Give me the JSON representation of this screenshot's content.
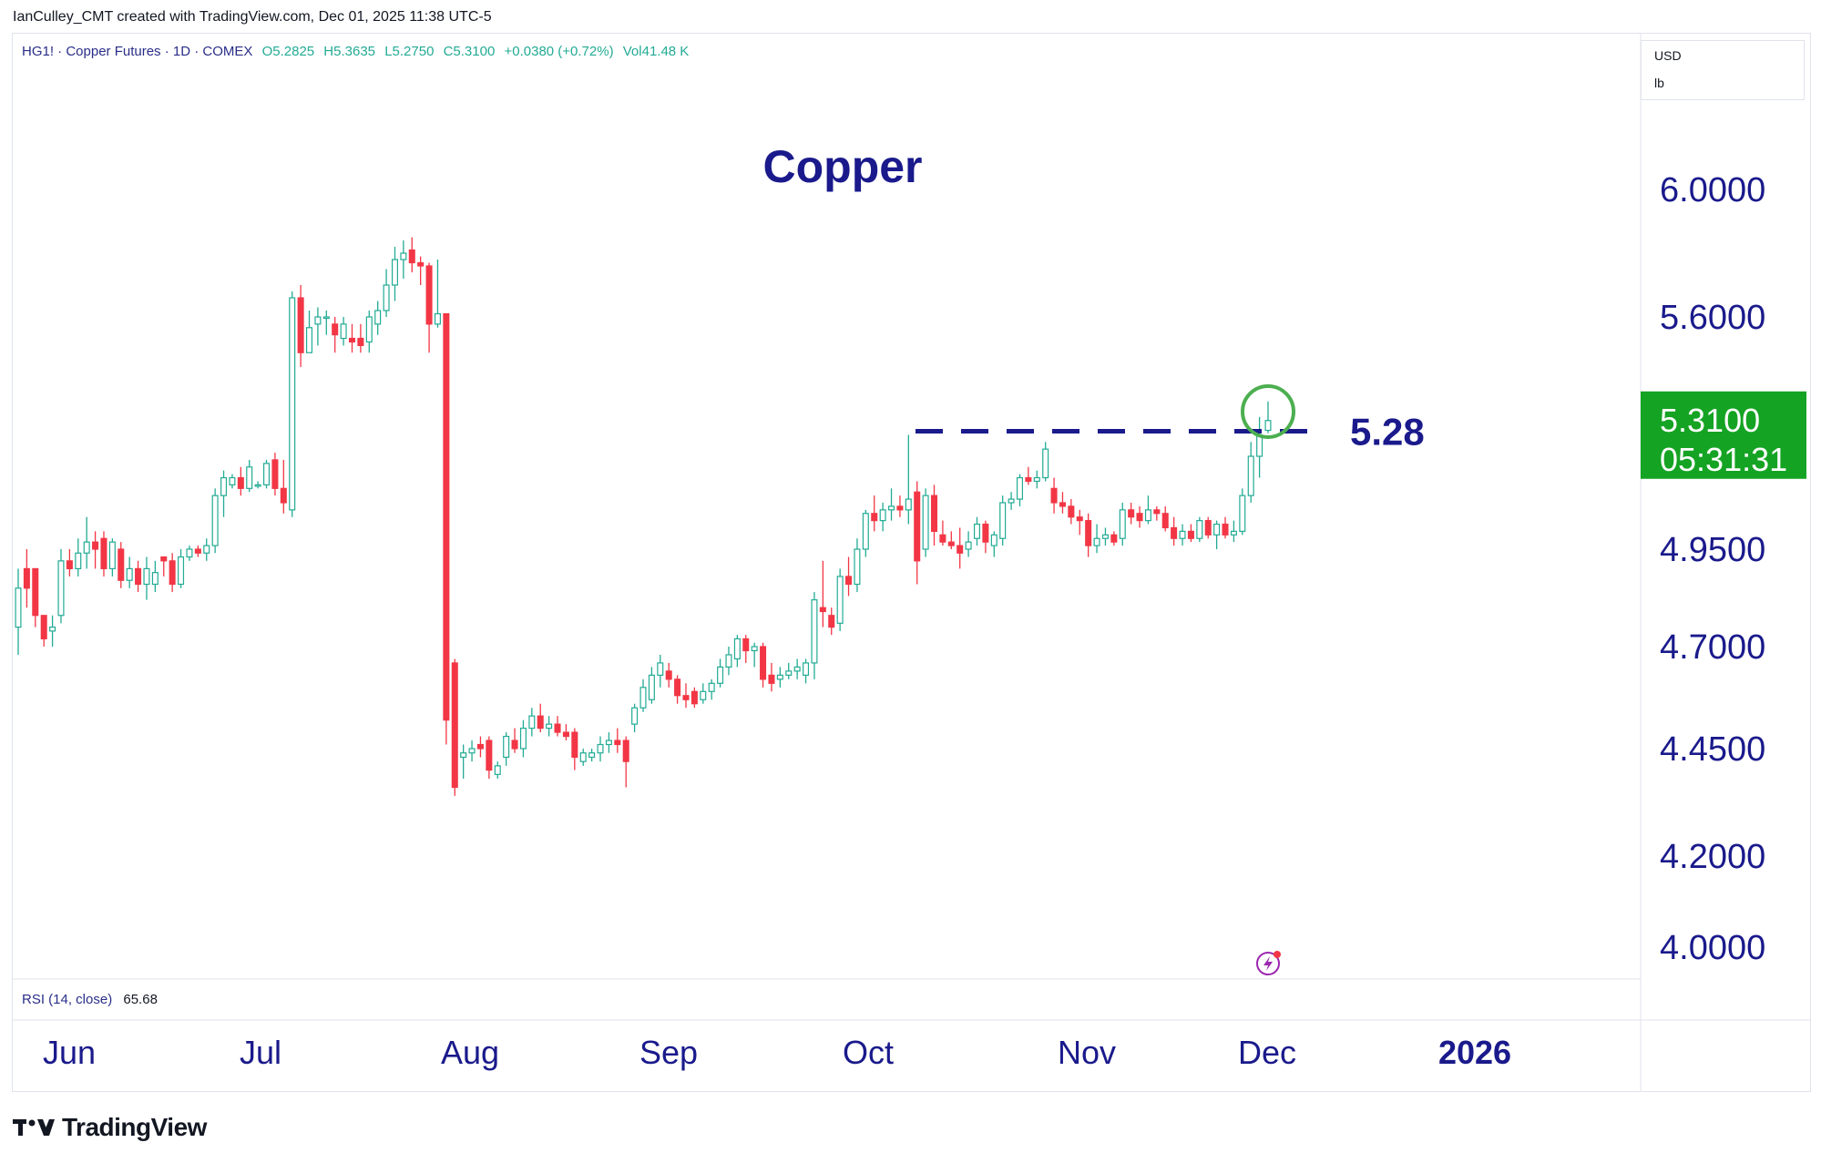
{
  "header": {
    "attribution": "IanCulley_CMT created with TradingView.com, Dec 01, 2025 11:38 UTC-5"
  },
  "legend": {
    "symbol": "HG1! · Copper Futures · 1D · COMEX",
    "open": "O5.2825",
    "high": "H5.3635",
    "low": "L5.2750",
    "close": "C5.3100",
    "change": "+0.0380 (+0.72%)",
    "volume": "Vol41.48 K"
  },
  "units": {
    "currency": "USD",
    "unit": "lb"
  },
  "indicator": {
    "label": "RSI (14, close)",
    "value": "65.68"
  },
  "price_tag": {
    "price": "5.3100",
    "countdown": "05:31:31"
  },
  "annotation": {
    "resistance_label": "5.28"
  },
  "brand": {
    "name": "TradingView"
  },
  "colors": {
    "up": "#22ab94",
    "up_body": "#4caf50",
    "down": "#f23645",
    "accent": "#1a1a8c",
    "tag": "#15a323"
  },
  "chart_data": {
    "type": "candlestick",
    "title": "Copper",
    "y_ticks": [
      6.0,
      5.6,
      4.95,
      4.7,
      4.45,
      4.2,
      4.0
    ],
    "y_tick_labels": [
      "6.0000",
      "5.6000",
      "4.9500",
      "4.7000",
      "4.4500",
      "4.2000",
      "4.0000"
    ],
    "x_ticks": [
      {
        "label": "Jun",
        "date": "2025-06-01"
      },
      {
        "label": "Jul",
        "date": "2025-07-01"
      },
      {
        "label": "Aug",
        "date": "2025-08-01"
      },
      {
        "label": "Sep",
        "date": "2025-09-01"
      },
      {
        "label": "Oct",
        "date": "2025-10-01"
      },
      {
        "label": "Nov",
        "date": "2025-11-01"
      },
      {
        "label": "Dec",
        "date": "2025-12-01"
      },
      {
        "label": "2026",
        "date": "2026-01-01"
      }
    ],
    "resistance": 5.28,
    "last_price": 5.31,
    "highlight_date": "2025-12-01",
    "candles": [
      {
        "d": "2025-05-27",
        "o": 4.75,
        "h": 4.9,
        "l": 4.68,
        "c": 4.85
      },
      {
        "d": "2025-05-28",
        "o": 4.9,
        "h": 4.95,
        "l": 4.8,
        "c": 4.85
      },
      {
        "d": "2025-05-29",
        "o": 4.9,
        "h": 4.9,
        "l": 4.75,
        "c": 4.78
      },
      {
        "d": "2025-05-30",
        "o": 4.78,
        "h": 4.78,
        "l": 4.7,
        "c": 4.72
      },
      {
        "d": "2025-06-02",
        "o": 4.74,
        "h": 4.78,
        "l": 4.7,
        "c": 4.75
      },
      {
        "d": "2025-06-03",
        "o": 4.78,
        "h": 4.95,
        "l": 4.76,
        "c": 4.92
      },
      {
        "d": "2025-06-04",
        "o": 4.92,
        "h": 4.95,
        "l": 4.88,
        "c": 4.9
      },
      {
        "d": "2025-06-05",
        "o": 4.9,
        "h": 4.98,
        "l": 4.88,
        "c": 4.94
      },
      {
        "d": "2025-06-06",
        "o": 4.94,
        "h": 5.04,
        "l": 4.9,
        "c": 4.97
      },
      {
        "d": "2025-06-09",
        "o": 4.97,
        "h": 5.0,
        "l": 4.9,
        "c": 4.95
      },
      {
        "d": "2025-06-10",
        "o": 4.98,
        "h": 5.0,
        "l": 4.88,
        "c": 4.9
      },
      {
        "d": "2025-06-11",
        "o": 4.9,
        "h": 4.98,
        "l": 4.88,
        "c": 4.97
      },
      {
        "d": "2025-06-12",
        "o": 4.95,
        "h": 4.97,
        "l": 4.85,
        "c": 4.87
      },
      {
        "d": "2025-06-13",
        "o": 4.87,
        "h": 4.93,
        "l": 4.85,
        "c": 4.9
      },
      {
        "d": "2025-06-16",
        "o": 4.9,
        "h": 4.92,
        "l": 4.84,
        "c": 4.86
      },
      {
        "d": "2025-06-17",
        "o": 4.86,
        "h": 4.93,
        "l": 4.82,
        "c": 4.9
      },
      {
        "d": "2025-06-18",
        "o": 4.86,
        "h": 4.92,
        "l": 4.84,
        "c": 4.89
      },
      {
        "d": "2025-06-19",
        "o": 4.93,
        "h": 4.93,
        "l": 4.88,
        "c": 4.92
      },
      {
        "d": "2025-06-20",
        "o": 4.92,
        "h": 4.94,
        "l": 4.84,
        "c": 4.86
      },
      {
        "d": "2025-06-23",
        "o": 4.86,
        "h": 4.95,
        "l": 4.85,
        "c": 4.93
      },
      {
        "d": "2025-06-24",
        "o": 4.93,
        "h": 4.96,
        "l": 4.92,
        "c": 4.95
      },
      {
        "d": "2025-06-25",
        "o": 4.95,
        "h": 4.96,
        "l": 4.93,
        "c": 4.94
      },
      {
        "d": "2025-06-26",
        "o": 4.94,
        "h": 4.98,
        "l": 4.92,
        "c": 4.96
      },
      {
        "d": "2025-06-27",
        "o": 4.96,
        "h": 5.12,
        "l": 4.94,
        "c": 5.1
      },
      {
        "d": "2025-06-30",
        "o": 5.1,
        "h": 5.17,
        "l": 5.04,
        "c": 5.15
      },
      {
        "d": "2025-07-01",
        "o": 5.13,
        "h": 5.16,
        "l": 5.12,
        "c": 5.15
      },
      {
        "d": "2025-07-02",
        "o": 5.15,
        "h": 5.18,
        "l": 5.1,
        "c": 5.12
      },
      {
        "d": "2025-07-03",
        "o": 5.12,
        "h": 5.2,
        "l": 5.11,
        "c": 5.18
      },
      {
        "d": "2025-07-04",
        "o": 5.13,
        "h": 5.14,
        "l": 5.12,
        "c": 5.13
      },
      {
        "d": "2025-07-07",
        "o": 5.13,
        "h": 5.2,
        "l": 5.12,
        "c": 5.19
      },
      {
        "d": "2025-07-08",
        "o": 5.2,
        "h": 5.22,
        "l": 5.1,
        "c": 5.12
      },
      {
        "d": "2025-07-09",
        "o": 5.12,
        "h": 5.2,
        "l": 5.05,
        "c": 5.08
      },
      {
        "d": "2025-07-10",
        "o": 5.06,
        "h": 5.68,
        "l": 5.04,
        "c": 5.66
      },
      {
        "d": "2025-07-11",
        "o": 5.66,
        "h": 5.7,
        "l": 5.46,
        "c": 5.5
      },
      {
        "d": "2025-07-14",
        "o": 5.5,
        "h": 5.62,
        "l": 5.5,
        "c": 5.57
      },
      {
        "d": "2025-07-15",
        "o": 5.58,
        "h": 5.63,
        "l": 5.52,
        "c": 5.6
      },
      {
        "d": "2025-07-16",
        "o": 5.6,
        "h": 5.62,
        "l": 5.55,
        "c": 5.6
      },
      {
        "d": "2025-07-17",
        "o": 5.58,
        "h": 5.6,
        "l": 5.5,
        "c": 5.55
      },
      {
        "d": "2025-07-18",
        "o": 5.54,
        "h": 5.6,
        "l": 5.52,
        "c": 5.58
      },
      {
        "d": "2025-07-21",
        "o": 5.54,
        "h": 5.58,
        "l": 5.5,
        "c": 5.53
      },
      {
        "d": "2025-07-22",
        "o": 5.54,
        "h": 5.58,
        "l": 5.5,
        "c": 5.52
      },
      {
        "d": "2025-07-23",
        "o": 5.53,
        "h": 5.62,
        "l": 5.5,
        "c": 5.6
      },
      {
        "d": "2025-07-24",
        "o": 5.58,
        "h": 5.65,
        "l": 5.55,
        "c": 5.62
      },
      {
        "d": "2025-07-25",
        "o": 5.62,
        "h": 5.75,
        "l": 5.6,
        "c": 5.7
      },
      {
        "d": "2025-07-28",
        "o": 5.7,
        "h": 5.82,
        "l": 5.65,
        "c": 5.78
      },
      {
        "d": "2025-07-29",
        "o": 5.78,
        "h": 5.84,
        "l": 5.72,
        "c": 5.8
      },
      {
        "d": "2025-07-30",
        "o": 5.81,
        "h": 5.85,
        "l": 5.74,
        "c": 5.77
      },
      {
        "d": "2025-07-31",
        "o": 5.77,
        "h": 5.79,
        "l": 5.7,
        "c": 5.76
      },
      {
        "d": "2025-08-01",
        "o": 5.76,
        "h": 5.77,
        "l": 5.5,
        "c": 5.58
      },
      {
        "d": "2025-08-04",
        "o": 5.58,
        "h": 5.78,
        "l": 5.57,
        "c": 5.61
      },
      {
        "d": "2025-08-05",
        "o": 5.61,
        "h": 5.61,
        "l": 4.46,
        "c": 4.52
      },
      {
        "d": "2025-08-06",
        "o": 4.66,
        "h": 4.67,
        "l": 4.34,
        "c": 4.36
      },
      {
        "d": "2025-08-07",
        "o": 4.43,
        "h": 4.46,
        "l": 4.38,
        "c": 4.44
      },
      {
        "d": "2025-08-08",
        "o": 4.44,
        "h": 4.47,
        "l": 4.42,
        "c": 4.45
      },
      {
        "d": "2025-08-11",
        "o": 4.46,
        "h": 4.48,
        "l": 4.43,
        "c": 4.45
      },
      {
        "d": "2025-08-12",
        "o": 4.47,
        "h": 4.48,
        "l": 4.38,
        "c": 4.4
      },
      {
        "d": "2025-08-13",
        "o": 4.39,
        "h": 4.42,
        "l": 4.38,
        "c": 4.41
      },
      {
        "d": "2025-08-14",
        "o": 4.43,
        "h": 4.49,
        "l": 4.41,
        "c": 4.48
      },
      {
        "d": "2025-08-15",
        "o": 4.47,
        "h": 4.5,
        "l": 4.44,
        "c": 4.45
      },
      {
        "d": "2025-08-18",
        "o": 4.45,
        "h": 4.52,
        "l": 4.43,
        "c": 4.5
      },
      {
        "d": "2025-08-19",
        "o": 4.5,
        "h": 4.55,
        "l": 4.48,
        "c": 4.53
      },
      {
        "d": "2025-08-20",
        "o": 4.53,
        "h": 4.56,
        "l": 4.49,
        "c": 4.5
      },
      {
        "d": "2025-08-21",
        "o": 4.5,
        "h": 4.53,
        "l": 4.48,
        "c": 4.51
      },
      {
        "d": "2025-08-22",
        "o": 4.51,
        "h": 4.53,
        "l": 4.48,
        "c": 4.49
      },
      {
        "d": "2025-08-25",
        "o": 4.49,
        "h": 4.51,
        "l": 4.47,
        "c": 4.48
      },
      {
        "d": "2025-08-26",
        "o": 4.49,
        "h": 4.5,
        "l": 4.4,
        "c": 4.43
      },
      {
        "d": "2025-08-27",
        "o": 4.42,
        "h": 4.45,
        "l": 4.41,
        "c": 4.44
      },
      {
        "d": "2025-08-28",
        "o": 4.43,
        "h": 4.45,
        "l": 4.42,
        "c": 4.44
      },
      {
        "d": "2025-08-29",
        "o": 4.44,
        "h": 4.48,
        "l": 4.42,
        "c": 4.46
      },
      {
        "d": "2025-09-01",
        "o": 4.46,
        "h": 4.49,
        "l": 4.44,
        "c": 4.47
      },
      {
        "d": "2025-09-02",
        "o": 4.47,
        "h": 4.5,
        "l": 4.44,
        "c": 4.46
      },
      {
        "d": "2025-09-03",
        "o": 4.47,
        "h": 4.48,
        "l": 4.36,
        "c": 4.42
      },
      {
        "d": "2025-09-04",
        "o": 4.51,
        "h": 4.56,
        "l": 4.49,
        "c": 4.55
      },
      {
        "d": "2025-09-05",
        "o": 4.55,
        "h": 4.62,
        "l": 4.54,
        "c": 4.6
      },
      {
        "d": "2025-09-08",
        "o": 4.57,
        "h": 4.65,
        "l": 4.56,
        "c": 4.63
      },
      {
        "d": "2025-09-09",
        "o": 4.63,
        "h": 4.68,
        "l": 4.6,
        "c": 4.66
      },
      {
        "d": "2025-09-10",
        "o": 4.64,
        "h": 4.66,
        "l": 4.6,
        "c": 4.62
      },
      {
        "d": "2025-09-11",
        "o": 4.62,
        "h": 4.63,
        "l": 4.56,
        "c": 4.58
      },
      {
        "d": "2025-09-12",
        "o": 4.58,
        "h": 4.61,
        "l": 4.55,
        "c": 4.57
      },
      {
        "d": "2025-09-15",
        "o": 4.59,
        "h": 4.6,
        "l": 4.55,
        "c": 4.56
      },
      {
        "d": "2025-09-16",
        "o": 4.57,
        "h": 4.61,
        "l": 4.56,
        "c": 4.59
      },
      {
        "d": "2025-09-17",
        "o": 4.59,
        "h": 4.62,
        "l": 4.57,
        "c": 4.61
      },
      {
        "d": "2025-09-18",
        "o": 4.61,
        "h": 4.67,
        "l": 4.6,
        "c": 4.65
      },
      {
        "d": "2025-09-19",
        "o": 4.65,
        "h": 4.7,
        "l": 4.63,
        "c": 4.68
      },
      {
        "d": "2025-09-22",
        "o": 4.67,
        "h": 4.73,
        "l": 4.65,
        "c": 4.72
      },
      {
        "d": "2025-09-23",
        "o": 4.72,
        "h": 4.73,
        "l": 4.66,
        "c": 4.69
      },
      {
        "d": "2025-09-24",
        "o": 4.69,
        "h": 4.71,
        "l": 4.65,
        "c": 4.7
      },
      {
        "d": "2025-09-25",
        "o": 4.7,
        "h": 4.71,
        "l": 4.6,
        "c": 4.62
      },
      {
        "d": "2025-09-26",
        "o": 4.63,
        "h": 4.66,
        "l": 4.59,
        "c": 4.61
      },
      {
        "d": "2025-09-29",
        "o": 4.62,
        "h": 4.65,
        "l": 4.6,
        "c": 4.63
      },
      {
        "d": "2025-09-30",
        "o": 4.63,
        "h": 4.66,
        "l": 4.62,
        "c": 4.64
      },
      {
        "d": "2025-10-01",
        "o": 4.64,
        "h": 4.67,
        "l": 4.62,
        "c": 4.65
      },
      {
        "d": "2025-10-02",
        "o": 4.63,
        "h": 4.67,
        "l": 4.61,
        "c": 4.66
      },
      {
        "d": "2025-10-03",
        "o": 4.66,
        "h": 4.84,
        "l": 4.62,
        "c": 4.82
      },
      {
        "d": "2025-10-06",
        "o": 4.8,
        "h": 4.92,
        "l": 4.75,
        "c": 4.79
      },
      {
        "d": "2025-10-07",
        "o": 4.78,
        "h": 4.8,
        "l": 4.73,
        "c": 4.75
      },
      {
        "d": "2025-10-08",
        "o": 4.76,
        "h": 4.9,
        "l": 4.74,
        "c": 4.88
      },
      {
        "d": "2025-10-09",
        "o": 4.88,
        "h": 4.93,
        "l": 4.83,
        "c": 4.86
      },
      {
        "d": "2025-10-10",
        "o": 4.86,
        "h": 4.98,
        "l": 4.84,
        "c": 4.95
      },
      {
        "d": "2025-10-13",
        "o": 4.95,
        "h": 5.06,
        "l": 4.93,
        "c": 5.05
      },
      {
        "d": "2025-10-14",
        "o": 5.05,
        "h": 5.1,
        "l": 5.0,
        "c": 5.03
      },
      {
        "d": "2025-10-15",
        "o": 5.03,
        "h": 5.08,
        "l": 5.0,
        "c": 5.06
      },
      {
        "d": "2025-10-16",
        "o": 5.06,
        "h": 5.12,
        "l": 5.03,
        "c": 5.07
      },
      {
        "d": "2025-10-17",
        "o": 5.07,
        "h": 5.1,
        "l": 5.04,
        "c": 5.06
      },
      {
        "d": "2025-10-20",
        "o": 5.06,
        "h": 5.27,
        "l": 5.02,
        "c": 5.09
      },
      {
        "d": "2025-10-21",
        "o": 5.11,
        "h": 5.14,
        "l": 4.86,
        "c": 4.92
      },
      {
        "d": "2025-10-22",
        "o": 4.95,
        "h": 5.12,
        "l": 4.93,
        "c": 5.1
      },
      {
        "d": "2025-10-23",
        "o": 5.1,
        "h": 5.13,
        "l": 4.96,
        "c": 5.0
      },
      {
        "d": "2025-10-24",
        "o": 4.99,
        "h": 5.03,
        "l": 4.96,
        "c": 4.97
      },
      {
        "d": "2025-10-27",
        "o": 4.97,
        "h": 5.0,
        "l": 4.95,
        "c": 4.96
      },
      {
        "d": "2025-10-28",
        "o": 4.96,
        "h": 5.01,
        "l": 4.9,
        "c": 4.94
      },
      {
        "d": "2025-10-29",
        "o": 4.95,
        "h": 5.0,
        "l": 4.93,
        "c": 4.97
      },
      {
        "d": "2025-10-30",
        "o": 4.98,
        "h": 5.04,
        "l": 4.96,
        "c": 5.02
      },
      {
        "d": "2025-10-31",
        "o": 5.02,
        "h": 5.03,
        "l": 4.94,
        "c": 4.97
      },
      {
        "d": "2025-11-03",
        "o": 4.96,
        "h": 5.0,
        "l": 4.93,
        "c": 4.99
      },
      {
        "d": "2025-11-04",
        "o": 4.98,
        "h": 5.1,
        "l": 4.96,
        "c": 5.08
      },
      {
        "d": "2025-11-05",
        "o": 5.08,
        "h": 5.11,
        "l": 5.06,
        "c": 5.09
      },
      {
        "d": "2025-11-06",
        "o": 5.09,
        "h": 5.16,
        "l": 5.07,
        "c": 5.15
      },
      {
        "d": "2025-11-07",
        "o": 5.15,
        "h": 5.18,
        "l": 5.13,
        "c": 5.14
      },
      {
        "d": "2025-11-10",
        "o": 5.14,
        "h": 5.17,
        "l": 5.12,
        "c": 5.15
      },
      {
        "d": "2025-11-11",
        "o": 5.15,
        "h": 5.25,
        "l": 5.14,
        "c": 5.23
      },
      {
        "d": "2025-11-12",
        "o": 5.12,
        "h": 5.15,
        "l": 5.05,
        "c": 5.08
      },
      {
        "d": "2025-11-13",
        "o": 5.08,
        "h": 5.11,
        "l": 5.05,
        "c": 5.07
      },
      {
        "d": "2025-11-14",
        "o": 5.07,
        "h": 5.09,
        "l": 5.02,
        "c": 5.04
      },
      {
        "d": "2025-11-17",
        "o": 5.04,
        "h": 5.06,
        "l": 4.99,
        "c": 5.03
      },
      {
        "d": "2025-11-18",
        "o": 5.03,
        "h": 5.05,
        "l": 4.93,
        "c": 4.96
      },
      {
        "d": "2025-11-19",
        "o": 4.96,
        "h": 5.02,
        "l": 4.94,
        "c": 4.98
      },
      {
        "d": "2025-11-20",
        "o": 4.98,
        "h": 5.01,
        "l": 4.96,
        "c": 4.99
      },
      {
        "d": "2025-11-21",
        "o": 4.99,
        "h": 5.0,
        "l": 4.96,
        "c": 4.97
      },
      {
        "d": "2025-11-24",
        "o": 4.98,
        "h": 5.08,
        "l": 4.96,
        "c": 5.06
      },
      {
        "d": "2025-11-25",
        "o": 5.06,
        "h": 5.08,
        "l": 5.02,
        "c": 5.04
      },
      {
        "d": "2025-11-26",
        "o": 5.05,
        "h": 5.07,
        "l": 5.01,
        "c": 5.03
      },
      {
        "d": "2025-11-27",
        "o": 5.03,
        "h": 5.1,
        "l": 5.02,
        "c": 5.06
      },
      {
        "d": "2025-11-28",
        "o": 5.06,
        "h": 5.07,
        "l": 5.03,
        "c": 5.05
      },
      {
        "d": "2025-11-28b",
        "o": 5.05,
        "h": 5.07,
        "l": 5.0,
        "c": 5.01
      },
      {
        "d": "2025-11-28c",
        "o": 5.01,
        "h": 5.04,
        "l": 4.96,
        "c": 4.98
      },
      {
        "d": "2025-11-28d",
        "o": 4.98,
        "h": 5.02,
        "l": 4.96,
        "c": 5.0
      },
      {
        "d": "2025-11-28e",
        "o": 5.0,
        "h": 5.02,
        "l": 4.97,
        "c": 4.98
      },
      {
        "d": "2025-11-28f",
        "o": 4.98,
        "h": 5.04,
        "l": 4.97,
        "c": 5.03
      },
      {
        "d": "2025-11-28g",
        "o": 5.03,
        "h": 5.04,
        "l": 4.98,
        "c": 4.99
      },
      {
        "d": "2025-11-28h",
        "o": 4.99,
        "h": 5.03,
        "l": 4.95,
        "c": 5.02
      },
      {
        "d": "2025-11-28i",
        "o": 5.02,
        "h": 5.04,
        "l": 4.98,
        "c": 4.99
      },
      {
        "d": "2025-11-28j",
        "o": 4.99,
        "h": 5.03,
        "l": 4.97,
        "c": 5.0
      },
      {
        "d": "2025-11-28k",
        "o": 5.0,
        "h": 5.12,
        "l": 4.99,
        "c": 5.1
      },
      {
        "d": "2025-11-28l",
        "o": 5.1,
        "h": 5.25,
        "l": 5.08,
        "c": 5.21
      },
      {
        "d": "2025-11-28m",
        "o": 5.21,
        "h": 5.32,
        "l": 5.15,
        "c": 5.27
      },
      {
        "d": "2025-12-01",
        "o": 5.2825,
        "h": 5.3635,
        "l": 5.275,
        "c": 5.31
      }
    ]
  }
}
